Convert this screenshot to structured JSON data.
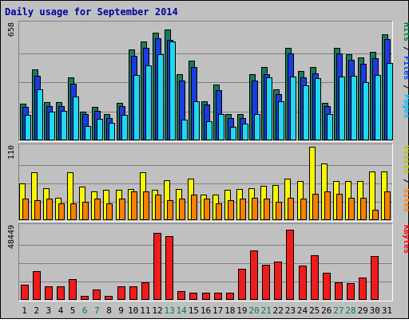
{
  "title": "Daily usage for September 2014",
  "chart_data": {
    "type": "bar",
    "title": "Daily usage for September 2014",
    "categories": [
      "1",
      "2",
      "3",
      "4",
      "5",
      "6",
      "7",
      "8",
      "9",
      "10",
      "11",
      "12",
      "13",
      "14",
      "15",
      "16",
      "17",
      "18",
      "19",
      "20",
      "21",
      "22",
      "23",
      "24",
      "25",
      "26",
      "27",
      "28",
      "29",
      "30",
      "31"
    ],
    "weekend_days": [
      "6",
      "7",
      "13",
      "14",
      "20",
      "21",
      "27",
      "28"
    ],
    "panels": [
      {
        "id": "hits",
        "max_label": "658",
        "ymax": 658,
        "right_labels": [
          {
            "text": "Hits",
            "color": "#008040"
          },
          {
            "text": " / ",
            "color": "#000000"
          },
          {
            "text": "Files",
            "color": "#0040ff"
          },
          {
            "text": " / ",
            "color": "#000000"
          },
          {
            "text": "Pages",
            "color": "#00c0ff"
          }
        ],
        "series": [
          {
            "name": "Hits",
            "color": "#1a7a5a",
            "values": [
              208,
              400,
              215,
              215,
              358,
              163,
              188,
              148,
              213,
              512,
              560,
              608,
              625,
              375,
              450,
              223,
              315,
              148,
              148,
              375,
              413,
              288,
              525,
              390,
              413,
              213,
              525,
              488,
              468,
              500,
              600
            ]
          },
          {
            "name": "Files",
            "color": "#1a3de0",
            "values": [
              188,
              365,
              195,
              195,
              320,
              148,
              168,
              128,
              193,
              478,
              523,
              575,
              570,
              340,
              413,
              203,
              283,
              128,
              128,
              340,
              375,
              263,
              490,
              355,
              380,
              193,
              490,
              455,
              433,
              465,
              573
            ]
          },
          {
            "name": "Pages",
            "color": "#20d8f0",
            "values": [
              143,
              290,
              163,
              168,
              250,
              80,
              120,
              98,
              143,
              370,
              425,
              485,
              560,
              115,
              220,
              110,
              148,
              75,
              95,
              148,
              355,
              220,
              360,
              310,
              350,
              148,
              360,
              365,
              330,
              370,
              435
            ]
          }
        ]
      },
      {
        "id": "visits",
        "max_label": "110",
        "ymax": 110,
        "right_labels": [
          {
            "text": "Visits",
            "color": "#c0c000"
          },
          {
            "text": " / ",
            "color": "#000000"
          },
          {
            "text": "Sites",
            "color": "#ff8000"
          }
        ],
        "series": [
          {
            "name": "Visits",
            "color": "#f8f800",
            "values": [
              55,
              72,
              48,
              34,
              72,
              50,
              43,
              45,
              45,
              47,
              72,
              45,
              60,
              47,
              62,
              38,
              38,
              45,
              47,
              48,
              52,
              53,
              62,
              58,
              110,
              85,
              58,
              58,
              58,
              73,
              73
            ]
          },
          {
            "name": "Sites",
            "color": "#f88000",
            "values": [
              32,
              30,
              32,
              25,
              25,
              28,
              32,
              25,
              32,
              43,
              43,
              38,
              30,
              32,
              38,
              32,
              25,
              30,
              32,
              33,
              32,
              28,
              33,
              32,
              40,
              43,
              40,
              33,
              33,
              15,
              43
            ]
          }
        ]
      },
      {
        "id": "kbytes",
        "max_label": "48449",
        "ymax": 48449,
        "right_labels": [
          {
            "text": "KBytes",
            "color": "#ff0000"
          }
        ],
        "series": [
          {
            "name": "KBytes",
            "color": "#ee1c1c",
            "values": [
              9800,
              19200,
              8900,
              8900,
              13800,
              2600,
              7100,
              2600,
              9000,
              9000,
              11800,
              44200,
              42200,
              5600,
              4700,
              4700,
              4700,
              4700,
              20700,
              32500,
              23100,
              25500,
              46400,
              22400,
              29400,
              17900,
              11700,
              11200,
              14800,
              29000,
              0
            ]
          }
        ]
      }
    ]
  }
}
